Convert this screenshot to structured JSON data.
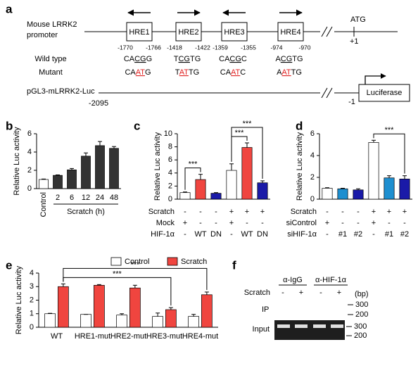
{
  "panel_labels": [
    "a",
    "b",
    "c",
    "d",
    "e",
    "f"
  ],
  "promoter_diagram": {
    "promoter_label": [
      "Mouse LRRK2",
      "promoter"
    ],
    "elements": [
      {
        "name": "HRE1",
        "orientation": "reverse",
        "start": "-1770",
        "end": "-1766",
        "wild_type": [
          "CA",
          "CG",
          "G"
        ],
        "mutant": [
          "CA",
          "AT",
          "G"
        ]
      },
      {
        "name": "HRE2",
        "orientation": "forward",
        "start": "-1418",
        "end": "-1422",
        "wild_type": [
          "T",
          "CG",
          "TG"
        ],
        "mutant": [
          "T",
          "AT",
          "TG"
        ]
      },
      {
        "name": "HRE3",
        "orientation": "reverse",
        "start": "-1359",
        "end": "-1355",
        "wild_type": [
          "CA",
          "CG",
          "C"
        ],
        "mutant": [
          "CA",
          "AT",
          "C"
        ]
      },
      {
        "name": "HRE4",
        "orientation": "forward",
        "start": "-974",
        "end": "-970",
        "wild_type": [
          "A",
          "CG",
          "TG"
        ],
        "mutant": [
          "A",
          "AT",
          "TG"
        ]
      }
    ],
    "atg": "ATG",
    "tss": "+1",
    "wild_type_label": "Wild type",
    "mutant_label": "Mutant",
    "construct": {
      "name": "pGL3-mLRRK2-Luc",
      "start": "-2095",
      "end": "-1",
      "reporter": "Luciferase"
    }
  },
  "chart_data": [
    {
      "type": "bar",
      "y_label": "Relative Luc activity",
      "x_label": "Scratch (h)",
      "categories": [
        "Control",
        "2",
        "6",
        "12",
        "24",
        "48"
      ],
      "series": [
        {
          "colors": [
            "#ffffff",
            "#333333",
            "#333333",
            "#333333",
            "#333333",
            "#333333"
          ],
          "values": [
            1.0,
            1.45,
            2.05,
            3.55,
            4.7,
            4.4
          ],
          "errors": [
            0.05,
            0.05,
            0.15,
            0.35,
            0.45,
            0.2
          ]
        }
      ],
      "ylim": [
        0,
        6
      ],
      "yticks": [
        0,
        2,
        4,
        6
      ]
    },
    {
      "type": "bar",
      "y_label": "Relative Luc activity",
      "series": [
        {
          "colors": [
            "#ffffff",
            "#f0453f",
            "#1a1aa8",
            "#ffffff",
            "#f0453f",
            "#1a1aa8"
          ],
          "values": [
            1.0,
            3.0,
            0.9,
            4.4,
            7.9,
            2.5
          ],
          "errors": [
            0.1,
            0.8,
            0.1,
            1.0,
            0.7,
            0.3
          ]
        }
      ],
      "conditions": [
        {
          "label": "Scratch",
          "values": [
            "-",
            "-",
            "-",
            "+",
            "+",
            "+"
          ]
        },
        {
          "label": "Mock",
          "values": [
            "+",
            "-",
            "-",
            "+",
            "-",
            "-"
          ]
        },
        {
          "label": "HIF-1α",
          "values": [
            "-",
            "WT",
            "DN",
            "-",
            "WT",
            "DN"
          ]
        }
      ],
      "significance": [
        "***",
        "***",
        "***"
      ],
      "ylim": [
        0,
        10
      ],
      "yticks": [
        0,
        2,
        4,
        6,
        8,
        10
      ]
    },
    {
      "type": "bar",
      "y_label": "Relative Luc activity",
      "series": [
        {
          "colors": [
            "#ffffff",
            "#1e8fd0",
            "#1a1aa8",
            "#ffffff",
            "#1e8fd0",
            "#1a1aa8"
          ],
          "values": [
            1.0,
            0.95,
            0.85,
            5.2,
            1.95,
            1.85
          ],
          "errors": [
            0.05,
            0.05,
            0.1,
            0.2,
            0.2,
            0.3
          ]
        }
      ],
      "conditions": [
        {
          "label": "Scratch",
          "values": [
            "-",
            "-",
            "-",
            "+",
            "+",
            "+"
          ]
        },
        {
          "label": "siControl",
          "values": [
            "+",
            "-",
            "-",
            "+",
            "-",
            "-"
          ]
        },
        {
          "label": "siHIF-1α",
          "values": [
            "-",
            "#1",
            "#2",
            "-",
            "#1",
            "#2"
          ]
        }
      ],
      "significance": [
        "***"
      ],
      "ylim": [
        0,
        6
      ],
      "yticks": [
        0,
        2,
        4,
        6
      ]
    },
    {
      "type": "bar",
      "y_label": "Relative Luc activity",
      "legend": true,
      "categories": [
        "WT",
        "HRE1-mut",
        "HRE2-mut",
        "HRE3-mut",
        "HRE4-mut"
      ],
      "series": [
        {
          "name": "Control",
          "color": "#ffffff",
          "values": [
            1.0,
            0.95,
            0.9,
            0.8,
            0.8
          ],
          "errors": [
            0.03,
            0.0,
            0.1,
            0.25,
            0.15
          ]
        },
        {
          "name": "Scratch",
          "color": "#f0453f",
          "values": [
            3.0,
            3.1,
            2.9,
            1.3,
            2.4
          ],
          "errors": [
            0.2,
            0.05,
            0.2,
            0.15,
            0.2
          ]
        }
      ],
      "significance": [
        "***",
        "***"
      ],
      "ylim": [
        0,
        4
      ],
      "yticks": [
        0,
        1,
        2,
        3,
        4
      ]
    }
  ],
  "gel": {
    "columns": [
      "α-IgG",
      "α-HIF-1α"
    ],
    "row_label": "Scratch",
    "lanes": [
      "-",
      "+",
      "-",
      "+"
    ],
    "unit": "(bp)",
    "ip_label": "IP",
    "input_label": "Input",
    "ip_markers": [
      "300",
      "200"
    ],
    "input_markers": [
      "300",
      "200"
    ]
  }
}
